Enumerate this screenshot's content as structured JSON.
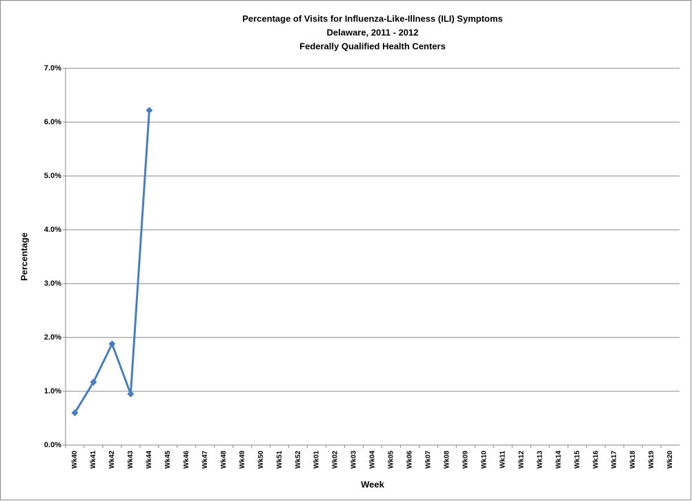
{
  "chart_data": {
    "type": "line",
    "title": [
      "Percentage of Visits for Influenza-Like-Illness (ILI) Symptoms",
      "Delaware, 2011 - 2012",
      "Federally Qualified Health Centers"
    ],
    "x_label": "Week",
    "y_label": "Percentage",
    "categories": [
      "Wk40",
      "Wk41",
      "Wk42",
      "Wk43",
      "Wk44",
      "Wk45",
      "Wk46",
      "Wk47",
      "Wk48",
      "Wk49",
      "Wk50",
      "Wk51",
      "Wk52",
      "Wk01",
      "Wk02",
      "Wk03",
      "Wk04",
      "Wk05",
      "Wk06",
      "Wk07",
      "Wk08",
      "Wk09",
      "Wk10",
      "Wk11",
      "Wk12",
      "Wk13",
      "Wk14",
      "Wk15",
      "Wk16",
      "Wk17",
      "Wk18",
      "Wk19",
      "Wk20"
    ],
    "series": [
      {
        "color": "#4a7ebb",
        "values": [
          0.6,
          1.17,
          1.88,
          0.95,
          6.22,
          null,
          null,
          null,
          null,
          null,
          null,
          null,
          null,
          null,
          null,
          null,
          null,
          null,
          null,
          null,
          null,
          null,
          null,
          null,
          null,
          null,
          null,
          null,
          null,
          null,
          null,
          null,
          null
        ]
      }
    ],
    "ylim": [
      0,
      7
    ],
    "yticks": [
      {
        "value": 0,
        "label": "0.0%"
      },
      {
        "value": 1,
        "label": "1.0%"
      },
      {
        "value": 2,
        "label": "2.0%"
      },
      {
        "value": 3,
        "label": "3.0%"
      },
      {
        "value": 4,
        "label": "4.0%"
      },
      {
        "value": 5,
        "label": "5.0%"
      },
      {
        "value": 6,
        "label": "6.0%"
      },
      {
        "value": 7,
        "label": "7.0%"
      }
    ],
    "grid": true
  }
}
